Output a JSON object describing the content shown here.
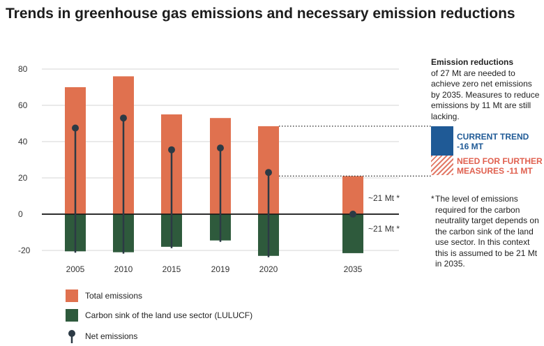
{
  "chart_data": {
    "type": "bar",
    "title": "Trends in greenhouse gas emissions and necessary emission reductions",
    "categories": [
      "2005",
      "2010",
      "2015",
      "2019",
      "2020",
      "2035"
    ],
    "ylim": [
      -20,
      80
    ],
    "yticks": [
      80,
      60,
      40,
      20,
      0,
      -20
    ],
    "series": [
      {
        "name": "Total emissions",
        "color": "#e0714f",
        "values": [
          70,
          76,
          55,
          53,
          48.5,
          21
        ]
      },
      {
        "name": "Carbon sink of the land use sector (LULUCF)",
        "color": "#2e5a3c",
        "values": [
          -20.5,
          -21,
          -18,
          -14.5,
          -23,
          -21.5
        ]
      },
      {
        "name": "Net emissions",
        "color": "#2c3a45",
        "values": [
          47.5,
          53,
          35.5,
          36.5,
          23,
          0
        ]
      }
    ],
    "annotations": {
      "above_2035": "~21 Mt *",
      "below_2035": "~21 Mt *"
    }
  },
  "side_note": {
    "heading": "Emission reductions",
    "body": "of 27 Mt are needed to achieve zero net emissions by 2035. Measures to reduce emissions by 11 Mt are still lacking.",
    "trend_label_1": "CURRENT TREND",
    "trend_label_2": "-16 MT",
    "need_label_1": "NEED FOR FURTHER",
    "need_label_2": "MEASURES -11 MT",
    "trend_color": "#1f5a96",
    "need_color": "#e0604f"
  },
  "footnote": {
    "star": "*",
    "text": "The level of emissions required for the carbon neutrality target depends on the carbon sink of the land use sector. In this context this is assumed to be 21 Mt in 2035."
  }
}
